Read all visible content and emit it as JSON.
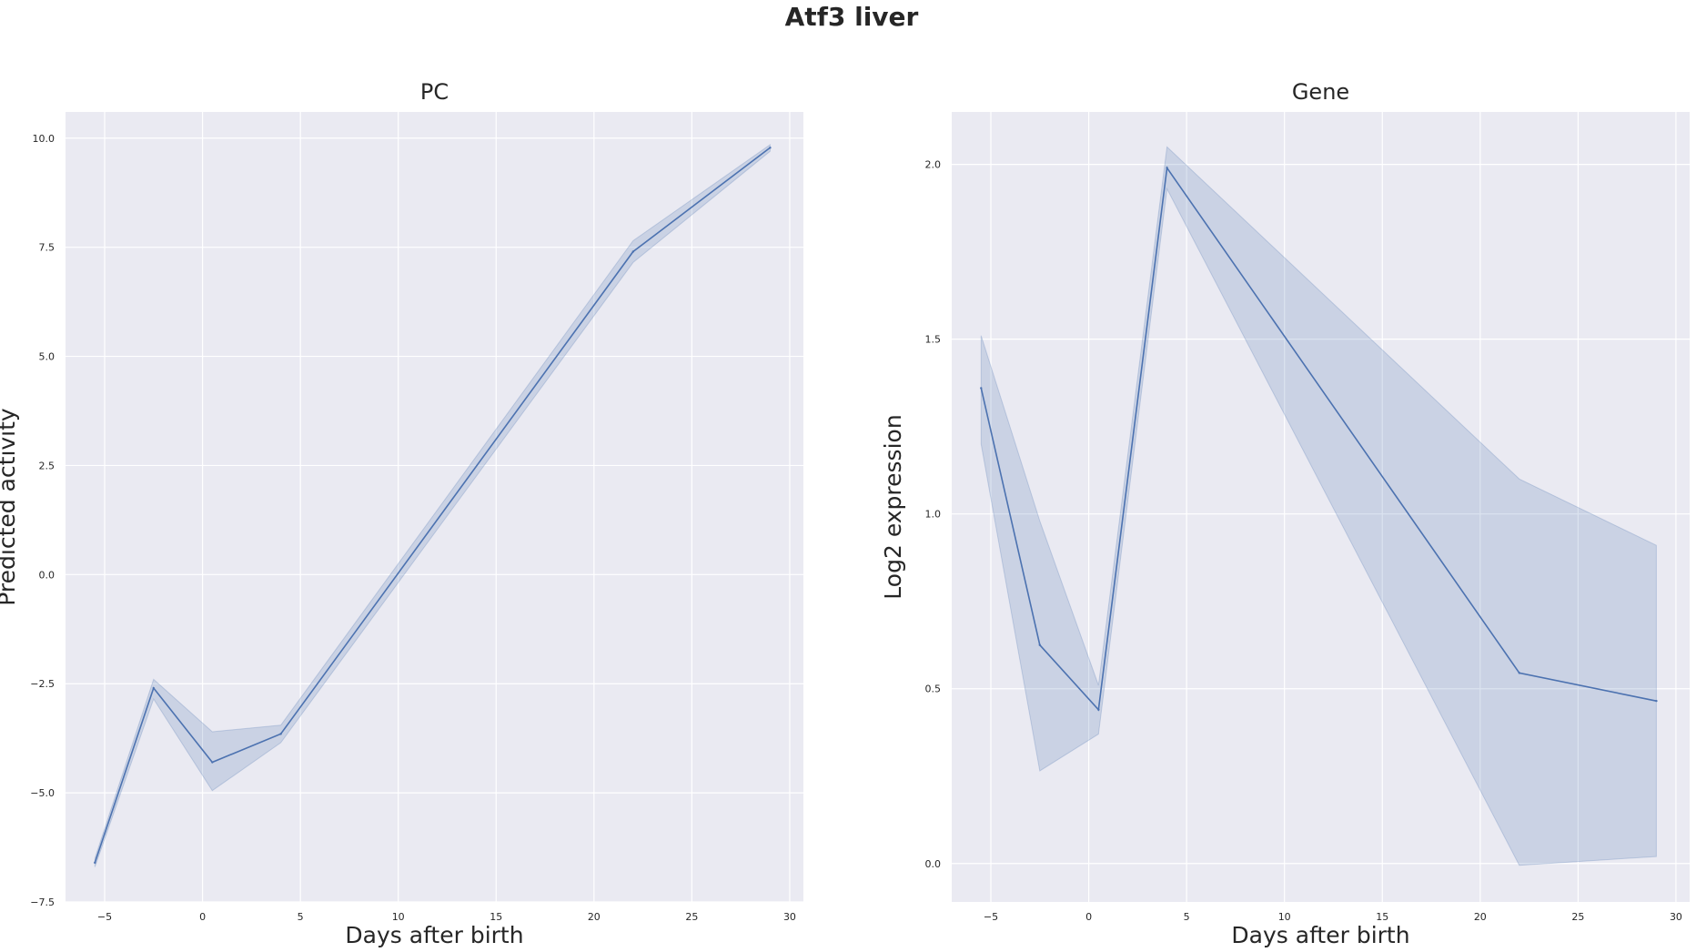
{
  "figure": {
    "suptitle": "Atf3 liver"
  },
  "colors": {
    "line": "#4c72b0",
    "band": "#4c72b0",
    "panel_bg": "#eaeaf2",
    "grid": "#ffffff",
    "text": "#262626"
  },
  "chart_data": [
    {
      "type": "line",
      "title": "PC",
      "xlabel": "Days after birth",
      "ylabel": "Predicted activity",
      "xlim": [
        -7.0,
        30.7
      ],
      "ylim": [
        -7.5,
        10.6
      ],
      "xticks": [
        -5,
        0,
        5,
        10,
        15,
        20,
        25,
        30
      ],
      "xtick_labels": [
        "−5",
        "0",
        "5",
        "10",
        "15",
        "20",
        "25",
        "30"
      ],
      "yticks": [
        -7.5,
        -5.0,
        -2.5,
        0.0,
        2.5,
        5.0,
        7.5,
        10.0
      ],
      "ytick_labels": [
        "−7.5",
        "−5.0",
        "−2.5",
        "0.0",
        "2.5",
        "5.0",
        "7.5",
        "10.0"
      ],
      "grid": true,
      "x": [
        -5.5,
        -2.5,
        0.5,
        4.0,
        22.0,
        29.0
      ],
      "y": [
        -6.6,
        -2.6,
        -4.3,
        -3.65,
        7.4,
        9.78
      ],
      "ci_lower": [
        -6.7,
        -2.85,
        -4.95,
        -3.85,
        7.15,
        9.7
      ],
      "ci_upper": [
        -6.5,
        -2.4,
        -3.6,
        -3.45,
        7.65,
        9.85
      ]
    },
    {
      "type": "line",
      "title": "Gene",
      "xlabel": "Days after birth",
      "ylabel": "Log2 expression",
      "xlim": [
        -7.0,
        30.7
      ],
      "ylim": [
        -0.11,
        2.15
      ],
      "xticks": [
        -5,
        0,
        5,
        10,
        15,
        20,
        25,
        30
      ],
      "xtick_labels": [
        "−5",
        "0",
        "5",
        "10",
        "15",
        "20",
        "25",
        "30"
      ],
      "yticks": [
        0.0,
        0.5,
        1.0,
        1.5,
        2.0
      ],
      "ytick_labels": [
        "0.0",
        "0.5",
        "1.0",
        "1.5",
        "2.0"
      ],
      "grid": true,
      "x": [
        -5.5,
        -2.5,
        0.5,
        4.0,
        22.0,
        29.0
      ],
      "y": [
        1.36,
        0.625,
        0.44,
        1.99,
        0.545,
        0.465
      ],
      "ci_lower": [
        1.2,
        0.265,
        0.37,
        1.93,
        -0.005,
        0.02
      ],
      "ci_upper": [
        1.51,
        0.98,
        0.51,
        2.05,
        1.1,
        0.91
      ]
    }
  ]
}
